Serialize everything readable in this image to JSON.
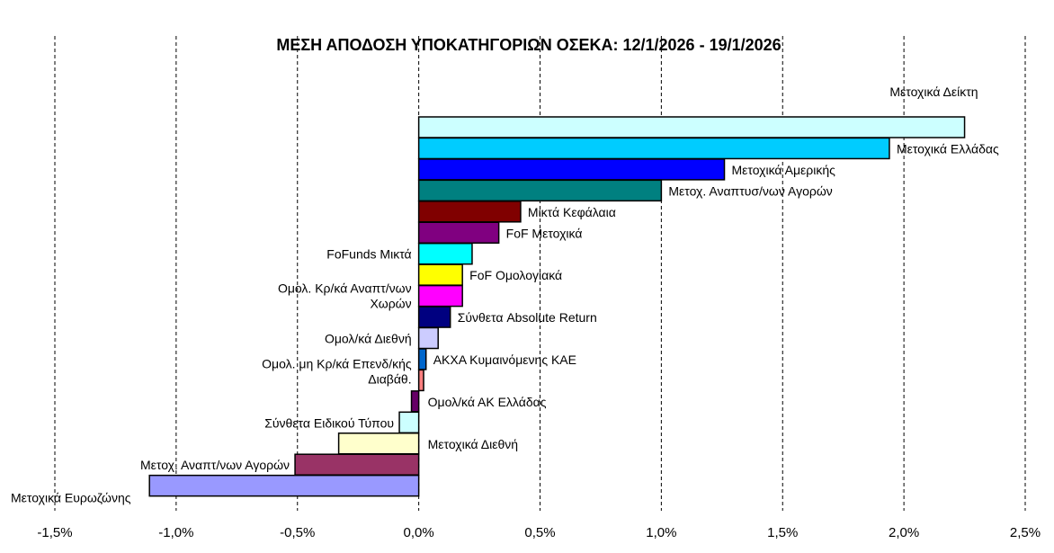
{
  "chart_data": {
    "type": "bar",
    "orientation": "horizontal",
    "title": "ΜΕΣΗ ΑΠΟΔΟΣΗ ΥΠΟΚΑΤΗΓΟΡΙΩΝ ΟΣΕΚΑ: 12/1/2026 - 19/1/2026",
    "xlim": [
      -1.5,
      2.5
    ],
    "xticks": [
      -1.5,
      -1.0,
      -0.5,
      0.0,
      0.5,
      1.0,
      1.5,
      2.0,
      2.5
    ],
    "xtick_labels": [
      "-1,5%",
      "-1,0%",
      "-0,5%",
      "0,0%",
      "0,5%",
      "1,0%",
      "1,5%",
      "2,0%",
      "2,5%"
    ],
    "grid": "vertical dashed",
    "categories": [
      "Μετοχικά Δείκτη",
      "Μετοχικά Ελλάδας",
      "Μετοχικά Αμερικής",
      "Μετοχ. Αναπτυσ/νων Αγορών",
      "Μικτά Κεφάλαια",
      "FoF Μετοχικά",
      "FoFunds Μικτά",
      "FoF Ομολογιακά",
      "Ομολ. Κρ/κά Αναπτ/νων Χωρών",
      "Σύνθετα Absolute Return",
      "Ομολ/κά Διεθνή",
      "ΑΚΧΑ Κυμαινόμενης ΚΑΕ",
      "Ομολ. μη Κρ/κά Επενδ/κής Διαβάθ.",
      "Ομολ/κά ΑΚ Ελλάδας",
      "Σύνθετα Ειδικού Τύπου",
      "Μετοχικά Διεθνή",
      "Μετοχ. Αναπτ/νων Αγορών",
      "Μετοχικά Ευρωζώνης"
    ],
    "values": [
      2.25,
      1.94,
      1.26,
      1.0,
      0.42,
      0.33,
      0.22,
      0.18,
      0.18,
      0.13,
      0.08,
      0.03,
      0.02,
      -0.03,
      -0.08,
      -0.33,
      -0.51,
      -1.11
    ],
    "colors": [
      "#ccffff",
      "#00ccff",
      "#0000ff",
      "#008080",
      "#800000",
      "#800080",
      "#00ffff",
      "#ffff00",
      "#ff00ff",
      "#000080",
      "#ccccff",
      "#0066cc",
      "#ff8080",
      "#660066",
      "#ccffff",
      "#ffffcc",
      "#993366",
      "#9999ff"
    ],
    "label_lines": [
      [
        "Μετοχικά Δείκτη"
      ],
      [
        "Μετοχικά Ελλάδας"
      ],
      [
        "Μετοχικά Αμερικής"
      ],
      [
        "Μετοχ. Αναπτυσ/νων Αγορών"
      ],
      [
        "Μικτά Κεφάλαια"
      ],
      [
        "FoF Μετοχικά"
      ],
      [
        "FoFunds Μικτά"
      ],
      [
        "FoF Ομολογιακά"
      ],
      [
        "Ομολ. Κρ/κά Αναπτ/νων",
        "Χωρών"
      ],
      [
        "Σύνθετα Absolute Return"
      ],
      [
        "Ομολ/κά Διεθνή"
      ],
      [
        "ΑΚΧΑ Κυμαινόμενης ΚΑΕ"
      ],
      [
        "Ομολ. μη Κρ/κά Επενδ/κής",
        "Διαβάθ."
      ],
      [
        "Ομολ/κά ΑΚ Ελλάδας"
      ],
      [
        "Σύνθετα Ειδικού Τύπου"
      ],
      [
        "Μετοχικά Διεθνή"
      ],
      [
        "Μετοχ. Αναπτ/νων Αγορών"
      ],
      [
        "Μετοχικά Ευρωζώνης"
      ]
    ]
  }
}
